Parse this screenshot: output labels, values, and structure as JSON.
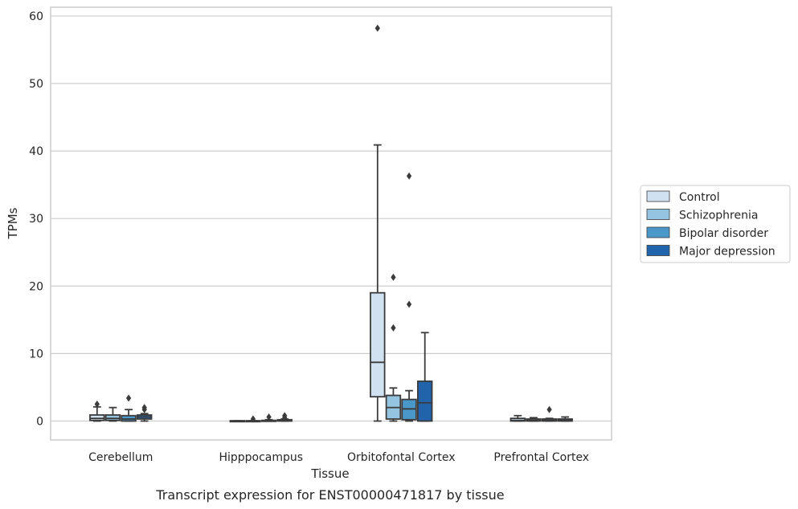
{
  "chart_data": {
    "type": "box",
    "xlabel": "Tissue",
    "ylabel": "TPMs",
    "caption": "Transcript expression for ENST00000471817 by tissue",
    "ylim": [
      -2.8,
      61.3
    ],
    "yticks": [
      0,
      10,
      20,
      30,
      40,
      50,
      60
    ],
    "grid": true,
    "legend_position": "right",
    "categories": [
      "Cerebellum",
      "Hipppocampus",
      "Orbitofontal Cortex",
      "Prefrontal Cortex"
    ],
    "series": [
      {
        "name": "Control",
        "color": "#d0e1f2",
        "boxes": [
          {
            "q1": 0.1,
            "median": 0.4,
            "q3": 0.9,
            "whislo": 0.0,
            "whishi": 2.1,
            "fliers": [
              2.5
            ]
          },
          {
            "q1": 0.0,
            "median": 0.0,
            "q3": 0.05,
            "whislo": 0.0,
            "whishi": 0.05,
            "fliers": []
          },
          {
            "q1": 3.6,
            "median": 8.7,
            "q3": 19.0,
            "whislo": 0.0,
            "whishi": 40.9,
            "fliers": [
              58.2
            ]
          },
          {
            "q1": 0.0,
            "median": 0.1,
            "q3": 0.4,
            "whislo": 0.0,
            "whishi": 0.8,
            "fliers": []
          }
        ]
      },
      {
        "name": "Schizophrenia",
        "color": "#94c4df",
        "boxes": [
          {
            "q1": 0.1,
            "median": 0.4,
            "q3": 0.9,
            "whislo": 0.0,
            "whishi": 2.0,
            "fliers": []
          },
          {
            "q1": 0.0,
            "median": 0.0,
            "q3": 0.05,
            "whislo": 0.0,
            "whishi": 0.05,
            "fliers": [
              0.3
            ]
          },
          {
            "q1": 0.3,
            "median": 2.0,
            "q3": 3.8,
            "whislo": 0.0,
            "whishi": 4.9,
            "fliers": [
              13.8,
              21.3
            ]
          },
          {
            "q1": 0.0,
            "median": 0.1,
            "q3": 0.3,
            "whislo": 0.0,
            "whishi": 0.5,
            "fliers": []
          }
        ]
      },
      {
        "name": "Bipolar disorder",
        "color": "#4a98c9",
        "boxes": [
          {
            "q1": 0.0,
            "median": 0.3,
            "q3": 0.8,
            "whislo": 0.0,
            "whishi": 1.7,
            "fliers": [
              3.4
            ]
          },
          {
            "q1": 0.0,
            "median": 0.0,
            "q3": 0.1,
            "whislo": 0.0,
            "whishi": 0.2,
            "fliers": [
              0.6
            ]
          },
          {
            "q1": 0.2,
            "median": 1.8,
            "q3": 3.2,
            "whislo": 0.0,
            "whishi": 4.5,
            "fliers": [
              17.3,
              36.3
            ]
          },
          {
            "q1": 0.0,
            "median": 0.1,
            "q3": 0.3,
            "whislo": 0.0,
            "whishi": 0.4,
            "fliers": [
              1.7
            ]
          }
        ]
      },
      {
        "name": "Major depression",
        "color": "#2164ab",
        "boxes": [
          {
            "q1": 0.3,
            "median": 0.6,
            "q3": 0.9,
            "whislo": 0.0,
            "whishi": 1.1,
            "fliers": [
              1.7,
              2.0
            ]
          },
          {
            "q1": 0.0,
            "median": 0.1,
            "q3": 0.2,
            "whislo": 0.0,
            "whishi": 0.3,
            "fliers": [
              0.5,
              0.8
            ]
          },
          {
            "q1": 0.0,
            "median": 2.7,
            "q3": 5.9,
            "whislo": 0.0,
            "whishi": 13.1,
            "fliers": []
          },
          {
            "q1": 0.0,
            "median": 0.1,
            "q3": 0.3,
            "whislo": 0.0,
            "whishi": 0.6,
            "fliers": []
          }
        ]
      }
    ]
  }
}
